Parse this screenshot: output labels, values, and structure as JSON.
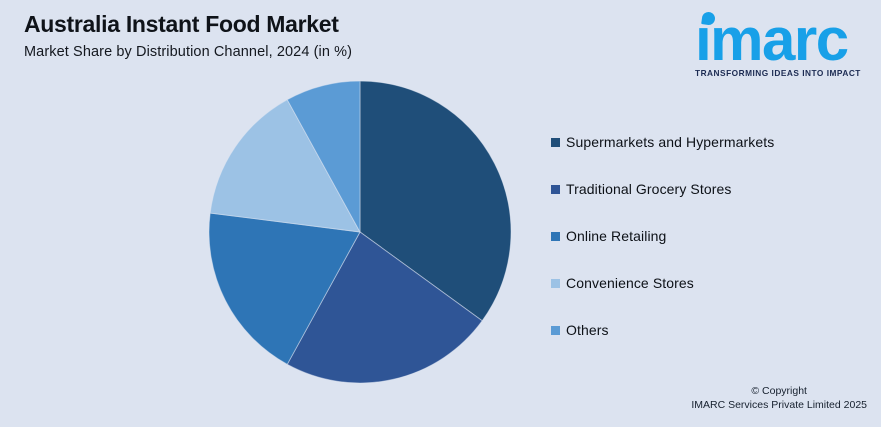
{
  "header": {
    "title": "Australia Instant Food Market",
    "subtitle": "Market Share by Distribution Channel, 2024 (in %)"
  },
  "logo": {
    "wordmark": "imarc",
    "tagline": "TRANSFORMING IDEAS INTO IMPACT",
    "brand_color": "#18a0e8",
    "tagline_color": "#1c2b52"
  },
  "chart_data": {
    "type": "pie",
    "title": "Australia Instant Food Market",
    "subtitle": "Market Share by Distribution Channel, 2024 (in %)",
    "labels": [
      "Supermarkets and Hypermarkets",
      "Traditional Grocery Stores",
      "Online Retailing",
      "Convenience Stores",
      "Others"
    ],
    "values": [
      35,
      23,
      19,
      15,
      8
    ],
    "colors": [
      "#1f4e79",
      "#2f5596",
      "#2e75b6",
      "#9cc2e5",
      "#5b9bd5"
    ],
    "start_angle_deg": 0,
    "direction": "clockwise",
    "legend_position": "right",
    "data_labels": false,
    "background_color": "#dce3f0"
  },
  "footer": {
    "line1": "© Copyright",
    "line2": "IMARC Services Private Limited 2025"
  }
}
